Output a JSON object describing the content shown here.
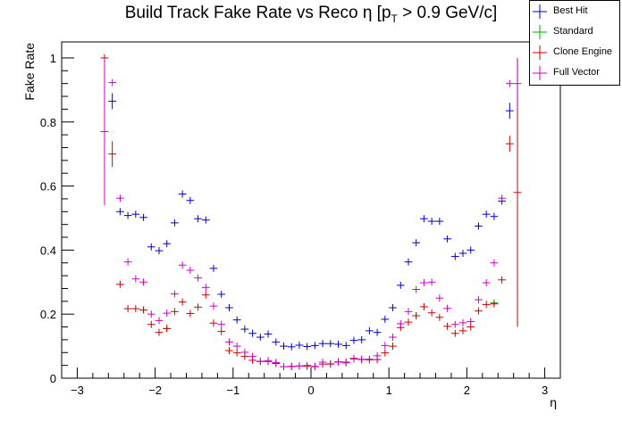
{
  "chart_data": {
    "type": "scatter",
    "title_main": "Build Track Fake Rate vs Reco η [p",
    "title_sub": "T",
    "title_tail": " > 0.9 GeV/c]",
    "xlabel": "η",
    "ylabel": "Fake Rate",
    "xlim": [
      -3.2,
      3.2
    ],
    "ylim": [
      0,
      1.05
    ],
    "xticks": [
      -3,
      -2,
      -1,
      0,
      1,
      2,
      3
    ],
    "yticks": [
      0,
      0.2,
      0.4,
      0.6,
      0.8,
      1
    ],
    "xtick_labels": [
      "−3",
      "−2",
      "−1",
      "0",
      "1",
      "2",
      "3"
    ],
    "ytick_labels": [
      "0",
      "0.2",
      "0.4",
      "0.6",
      "0.8",
      "1"
    ],
    "legend_position": "top-right",
    "series": [
      {
        "name": "Best Hit",
        "color": "#0000cc",
        "points": [
          [
            -2.55,
            0.865,
            0.025
          ],
          [
            -2.45,
            0.52,
            0.008
          ],
          [
            -2.35,
            0.508,
            0.008
          ],
          [
            -2.25,
            0.512,
            0.008
          ],
          [
            -2.15,
            0.502,
            0.008
          ],
          [
            -2.05,
            0.41,
            0.008
          ],
          [
            -1.95,
            0.398,
            0.008
          ],
          [
            -1.85,
            0.42,
            0.008
          ],
          [
            -1.75,
            0.485,
            0.008
          ],
          [
            -1.65,
            0.575,
            0.008
          ],
          [
            -1.55,
            0.555,
            0.008
          ],
          [
            -1.45,
            0.498,
            0.008
          ],
          [
            -1.35,
            0.494,
            0.008
          ],
          [
            -1.25,
            0.343,
            0.008
          ],
          [
            -1.15,
            0.262,
            0.006
          ],
          [
            -1.05,
            0.22,
            0.006
          ],
          [
            -0.95,
            0.182,
            0.005
          ],
          [
            -0.85,
            0.153,
            0.005
          ],
          [
            -0.75,
            0.14,
            0.004
          ],
          [
            -0.65,
            0.128,
            0.004
          ],
          [
            -0.55,
            0.138,
            0.004
          ],
          [
            -0.45,
            0.113,
            0.004
          ],
          [
            -0.35,
            0.1,
            0.004
          ],
          [
            -0.25,
            0.098,
            0.004
          ],
          [
            -0.15,
            0.103,
            0.004
          ],
          [
            -0.05,
            0.099,
            0.004
          ],
          [
            0.05,
            0.102,
            0.004
          ],
          [
            0.15,
            0.108,
            0.004
          ],
          [
            0.25,
            0.108,
            0.004
          ],
          [
            0.35,
            0.106,
            0.004
          ],
          [
            0.45,
            0.102,
            0.004
          ],
          [
            0.55,
            0.118,
            0.004
          ],
          [
            0.65,
            0.12,
            0.004
          ],
          [
            0.75,
            0.148,
            0.005
          ],
          [
            0.85,
            0.143,
            0.005
          ],
          [
            0.95,
            0.184,
            0.005
          ],
          [
            1.05,
            0.22,
            0.006
          ],
          [
            1.15,
            0.29,
            0.006
          ],
          [
            1.25,
            0.363,
            0.008
          ],
          [
            1.35,
            0.423,
            0.008
          ],
          [
            1.45,
            0.498,
            0.008
          ],
          [
            1.55,
            0.49,
            0.008
          ],
          [
            1.65,
            0.49,
            0.008
          ],
          [
            1.75,
            0.435,
            0.008
          ],
          [
            1.85,
            0.38,
            0.008
          ],
          [
            1.95,
            0.39,
            0.008
          ],
          [
            2.05,
            0.4,
            0.008
          ],
          [
            2.15,
            0.475,
            0.008
          ],
          [
            2.25,
            0.512,
            0.008
          ],
          [
            2.35,
            0.505,
            0.008
          ],
          [
            2.45,
            0.553,
            0.01
          ],
          [
            2.55,
            0.835,
            0.025
          ]
        ]
      },
      {
        "name": "Standard",
        "color": "#00aa00",
        "points": [
          [
            -1.85,
            0.155,
            0.005
          ],
          [
            1.35,
            0.195,
            0.005
          ],
          [
            2.35,
            0.235,
            0.006
          ]
        ]
      },
      {
        "name": "Clone Engine",
        "color": "#cc0000",
        "points": [
          [
            -2.65,
            1.0,
            0.0
          ],
          [
            -2.55,
            0.7,
            0.04
          ],
          [
            -2.45,
            0.293,
            0.006
          ],
          [
            -2.35,
            0.217,
            0.005
          ],
          [
            -2.25,
            0.217,
            0.005
          ],
          [
            -2.15,
            0.213,
            0.005
          ],
          [
            -2.05,
            0.168,
            0.005
          ],
          [
            -1.95,
            0.143,
            0.005
          ],
          [
            -1.85,
            0.155,
            0.005
          ],
          [
            -1.75,
            0.208,
            0.005
          ],
          [
            -1.65,
            0.238,
            0.005
          ],
          [
            -1.55,
            0.202,
            0.005
          ],
          [
            -1.45,
            0.222,
            0.005
          ],
          [
            -1.35,
            0.26,
            0.005
          ],
          [
            -1.25,
            0.172,
            0.005
          ],
          [
            -1.15,
            0.146,
            0.004
          ],
          [
            -1.05,
            0.086,
            0.004
          ],
          [
            -0.95,
            0.079,
            0.004
          ],
          [
            -0.85,
            0.068,
            0.003
          ],
          [
            -0.75,
            0.056,
            0.003
          ],
          [
            -0.65,
            0.052,
            0.003
          ],
          [
            -0.55,
            0.052,
            0.003
          ],
          [
            -0.45,
            0.046,
            0.003
          ],
          [
            -0.35,
            0.036,
            0.003
          ],
          [
            -0.25,
            0.037,
            0.003
          ],
          [
            -0.15,
            0.038,
            0.003
          ],
          [
            -0.05,
            0.037,
            0.003
          ],
          [
            0.05,
            0.036,
            0.003
          ],
          [
            0.15,
            0.044,
            0.003
          ],
          [
            0.25,
            0.044,
            0.003
          ],
          [
            0.35,
            0.051,
            0.003
          ],
          [
            0.45,
            0.05,
            0.003
          ],
          [
            0.55,
            0.06,
            0.003
          ],
          [
            0.65,
            0.058,
            0.003
          ],
          [
            0.75,
            0.057,
            0.003
          ],
          [
            0.85,
            0.058,
            0.003
          ],
          [
            0.95,
            0.079,
            0.004
          ],
          [
            1.05,
            0.1,
            0.004
          ],
          [
            1.15,
            0.158,
            0.005
          ],
          [
            1.25,
            0.175,
            0.005
          ],
          [
            1.35,
            0.195,
            0.005
          ],
          [
            1.45,
            0.223,
            0.005
          ],
          [
            1.55,
            0.204,
            0.005
          ],
          [
            1.65,
            0.19,
            0.005
          ],
          [
            1.75,
            0.162,
            0.005
          ],
          [
            1.85,
            0.14,
            0.005
          ],
          [
            1.95,
            0.148,
            0.005
          ],
          [
            2.05,
            0.16,
            0.005
          ],
          [
            2.15,
            0.21,
            0.005
          ],
          [
            2.25,
            0.23,
            0.005
          ],
          [
            2.35,
            0.232,
            0.005
          ],
          [
            2.45,
            0.307,
            0.006
          ],
          [
            2.55,
            0.732,
            0.025
          ],
          [
            2.65,
            0.58,
            0.42
          ]
        ]
      },
      {
        "name": "Full Vector",
        "color": "#cc00cc",
        "points": [
          [
            -2.65,
            0.77,
            0.23
          ],
          [
            -2.55,
            0.923,
            0.01
          ],
          [
            -2.45,
            0.562,
            0.008
          ],
          [
            -2.35,
            0.363,
            0.008
          ],
          [
            -2.25,
            0.31,
            0.006
          ],
          [
            -2.15,
            0.3,
            0.006
          ],
          [
            -2.05,
            0.2,
            0.005
          ],
          [
            -1.95,
            0.18,
            0.005
          ],
          [
            -1.85,
            0.203,
            0.005
          ],
          [
            -1.75,
            0.263,
            0.006
          ],
          [
            -1.65,
            0.353,
            0.006
          ],
          [
            -1.55,
            0.337,
            0.006
          ],
          [
            -1.45,
            0.313,
            0.006
          ],
          [
            -1.35,
            0.283,
            0.006
          ],
          [
            -1.25,
            0.225,
            0.005
          ],
          [
            -1.15,
            0.168,
            0.005
          ],
          [
            -1.05,
            0.113,
            0.004
          ],
          [
            -0.95,
            0.1,
            0.004
          ],
          [
            -0.85,
            0.081,
            0.004
          ],
          [
            -0.75,
            0.068,
            0.003
          ],
          [
            -0.65,
            0.053,
            0.003
          ],
          [
            -0.55,
            0.055,
            0.003
          ],
          [
            -0.45,
            0.049,
            0.003
          ],
          [
            -0.35,
            0.036,
            0.003
          ],
          [
            -0.25,
            0.036,
            0.003
          ],
          [
            -0.15,
            0.038,
            0.003
          ],
          [
            -0.05,
            0.04,
            0.003
          ],
          [
            0.05,
            0.037,
            0.003
          ],
          [
            0.15,
            0.05,
            0.003
          ],
          [
            0.25,
            0.045,
            0.003
          ],
          [
            0.35,
            0.05,
            0.003
          ],
          [
            0.45,
            0.048,
            0.003
          ],
          [
            0.55,
            0.062,
            0.003
          ],
          [
            0.65,
            0.059,
            0.003
          ],
          [
            0.75,
            0.059,
            0.003
          ],
          [
            0.85,
            0.07,
            0.003
          ],
          [
            0.95,
            0.102,
            0.004
          ],
          [
            1.05,
            0.128,
            0.004
          ],
          [
            1.15,
            0.17,
            0.005
          ],
          [
            1.25,
            0.208,
            0.005
          ],
          [
            1.35,
            0.277,
            0.006
          ],
          [
            1.45,
            0.298,
            0.006
          ],
          [
            1.55,
            0.3,
            0.006
          ],
          [
            1.65,
            0.25,
            0.005
          ],
          [
            1.75,
            0.218,
            0.005
          ],
          [
            1.85,
            0.168,
            0.005
          ],
          [
            1.95,
            0.173,
            0.005
          ],
          [
            2.05,
            0.177,
            0.005
          ],
          [
            2.15,
            0.245,
            0.005
          ],
          [
            2.25,
            0.298,
            0.006
          ],
          [
            2.35,
            0.36,
            0.008
          ],
          [
            2.45,
            0.562,
            0.008
          ],
          [
            2.55,
            0.92,
            0.01
          ],
          [
            2.65,
            0.92,
            0.08
          ]
        ]
      }
    ]
  }
}
